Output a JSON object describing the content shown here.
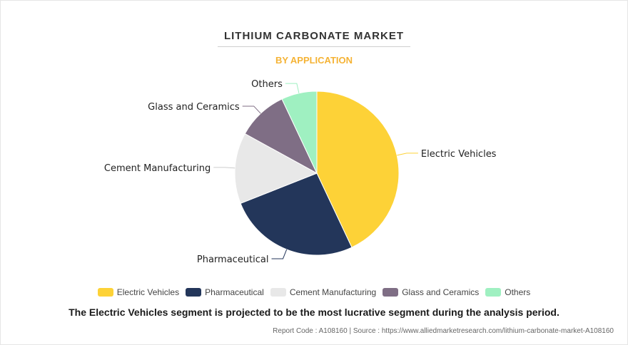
{
  "chart_data": {
    "type": "pie",
    "title": "LITHIUM CARBONATE MARKET",
    "subtitle": "BY APPLICATION",
    "categories": [
      "Electric Vehicles",
      "Pharmaceutical",
      "Cement Manufacturing",
      "Glass and Ceramics",
      "Others"
    ],
    "values": [
      43,
      26,
      14,
      10,
      7
    ],
    "colors": [
      "#fdd237",
      "#23365a",
      "#e8e8e8",
      "#7f6e85",
      "#9ff0c1"
    ],
    "legend_position": "bottom",
    "start_angle_deg": 0,
    "direction": "clockwise"
  },
  "footnote": "The Electric Vehicles segment is projected to be the most lucrative segment during the analysis period.",
  "source": "Report Code : A108160  |  Source : https://www.alliedmarketresearch.com/lithium-carbonate-market-A108160"
}
